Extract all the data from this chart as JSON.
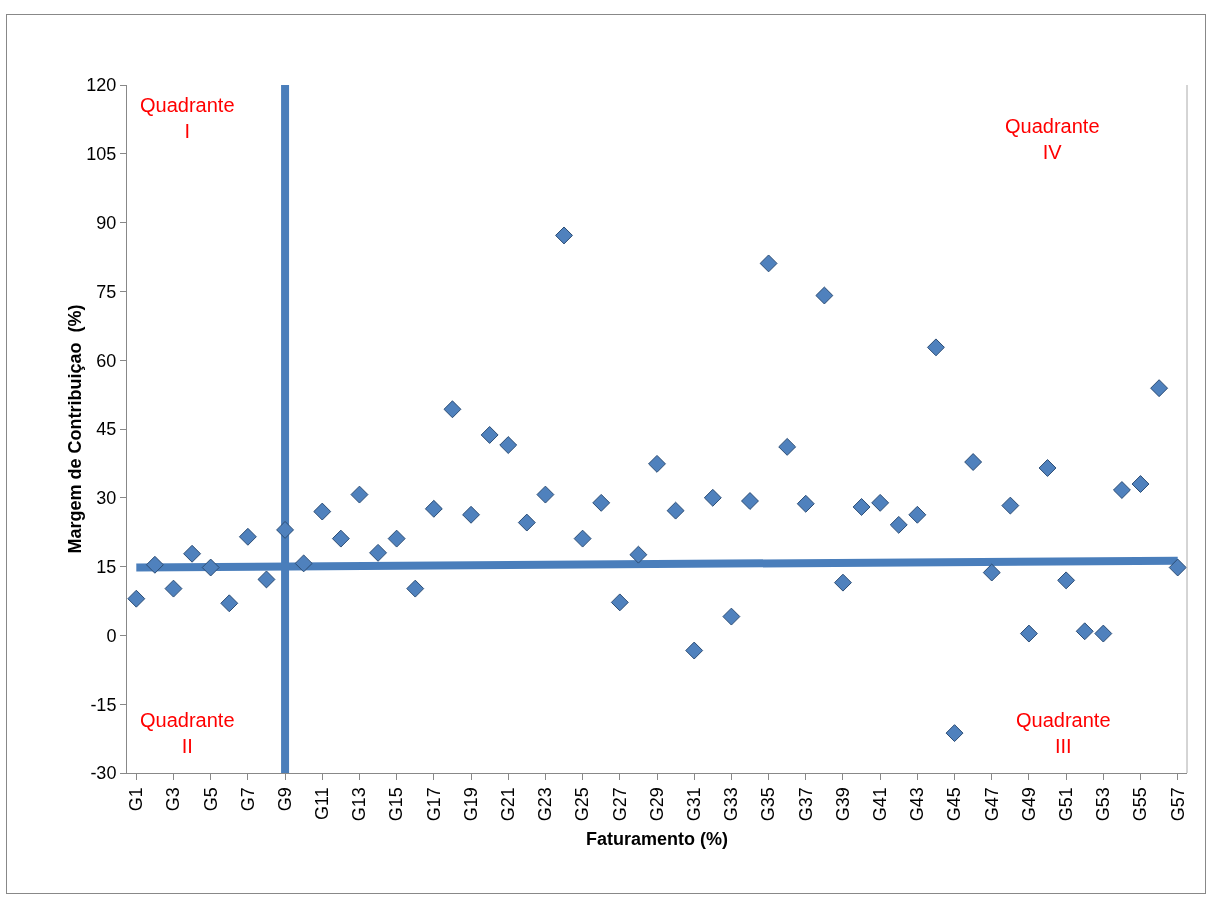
{
  "chart_data": {
    "type": "scatter",
    "xlabel": "Faturamento (%)",
    "ylabel": "Margem de Contribuiçao  (%)",
    "categories": [
      "G1",
      null,
      "G3",
      null,
      "G5",
      null,
      "G7",
      null,
      "G9",
      null,
      "G11",
      null,
      "G13",
      null,
      "G15",
      null,
      "G17",
      null,
      "G19",
      null,
      "G21",
      null,
      "G23",
      null,
      "G25",
      null,
      "G27",
      null,
      "G29",
      null,
      "G31",
      null,
      "G33",
      null,
      "G35",
      null,
      "G37",
      null,
      "G39",
      null,
      "G41",
      null,
      "G43",
      null,
      "G45",
      null,
      "G47",
      null,
      "G49",
      null,
      "G51",
      null,
      "G53",
      null,
      "G55",
      null,
      "G57"
    ],
    "series": [
      {
        "color": "#4f81bd",
        "marker": "diamond",
        "values": [
          8.0,
          15.4,
          10.2,
          17.8,
          14.8,
          7.0,
          21.5,
          12.2,
          23.0,
          15.7,
          27.0,
          21.1,
          30.7,
          18.0,
          21.1,
          10.2,
          27.6,
          49.3,
          26.3,
          43.7,
          41.5,
          24.6,
          30.7,
          87.2,
          21.1,
          28.9,
          7.2,
          17.6,
          37.4,
          27.2,
          -3.3,
          30.0,
          4.1,
          29.3,
          81.1,
          41.1,
          28.7,
          74.1,
          11.5,
          28.0,
          28.9,
          24.1,
          26.3,
          62.8,
          -21.3,
          37.8,
          13.7,
          28.3,
          0.4,
          36.5,
          12.0,
          0.9,
          0.4,
          31.7,
          33.0,
          53.9,
          14.8
        ]
      },
      {
        "type": "line",
        "color": "#4a7ebb",
        "marker": "none",
        "line_style": "solid",
        "x": [
          "G1",
          "G57"
        ],
        "values": [
          14.8,
          16.3
        ]
      }
    ],
    "ref_lines": [
      {
        "axis": "x",
        "value": "G9",
        "color": "#4a7ebb",
        "line_style": "solid"
      }
    ],
    "ylim": [
      -30,
      120
    ],
    "yticks": [
      -30,
      -15,
      0,
      15,
      30,
      45,
      60,
      75,
      90,
      105,
      120
    ],
    "grid": false,
    "annotations": [
      "Quadrante\nI",
      "Quadrante\nII",
      "Quadrante\nIII",
      "Quadrante\nIV"
    ]
  }
}
